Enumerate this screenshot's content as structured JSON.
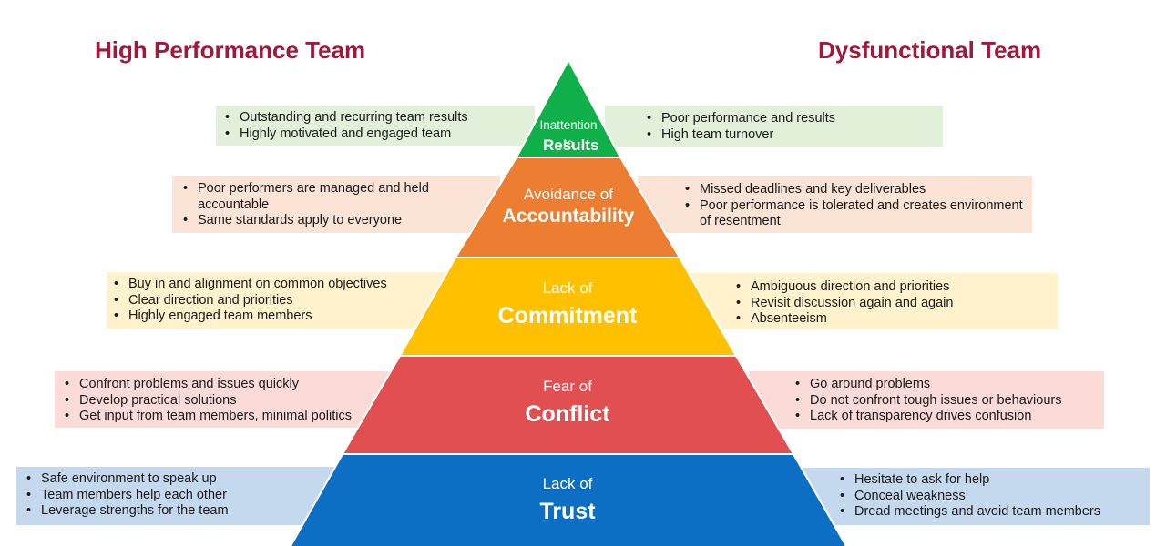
{
  "headings": {
    "left": "High Performance Team",
    "right": "Dysfunctional Team"
  },
  "colors": {
    "heading": "#a3173a",
    "results": "#0fb04a",
    "accountability": "#ed7d31",
    "commitment": "#ffc000",
    "conflict": "#e24f50",
    "trust": "#0d6fc4"
  },
  "levels": [
    {
      "small": "Inattention to",
      "big": "Results",
      "left": [
        "Outstanding and recurring team results",
        "Highly motivated and engaged team"
      ],
      "right": [
        "Poor performance and results",
        "High team turnover"
      ]
    },
    {
      "small": "Avoidance of",
      "big": "Accountability",
      "left": [
        "Poor performers are managed and held accountable",
        "Same standards apply to everyone"
      ],
      "right": [
        "Missed deadlines and key deliverables",
        "Poor performance is tolerated and creates environment of resentment"
      ]
    },
    {
      "small": "Lack of",
      "big": "Commitment",
      "left": [
        "Buy in and alignment on common objectives",
        "Clear direction and priorities",
        "Highly engaged team members"
      ],
      "right": [
        "Ambiguous direction and priorities",
        "Revisit discussion again and again",
        "Absenteeism"
      ]
    },
    {
      "small": "Fear of",
      "big": "Conflict",
      "left": [
        "Confront problems and issues quickly",
        "Develop practical solutions",
        "Get input from team members, minimal politics"
      ],
      "right": [
        "Go around problems",
        "Do not confront tough issues or behaviours",
        "Lack of transparency drives confusion"
      ]
    },
    {
      "small": "Lack of",
      "big": "Trust",
      "left": [
        "Safe environment to speak up",
        "Team members help each other",
        "Leverage strengths for the team"
      ],
      "right": [
        "Hesitate to ask for help",
        "Conceal weakness",
        "Dread meetings and avoid team members"
      ]
    }
  ]
}
